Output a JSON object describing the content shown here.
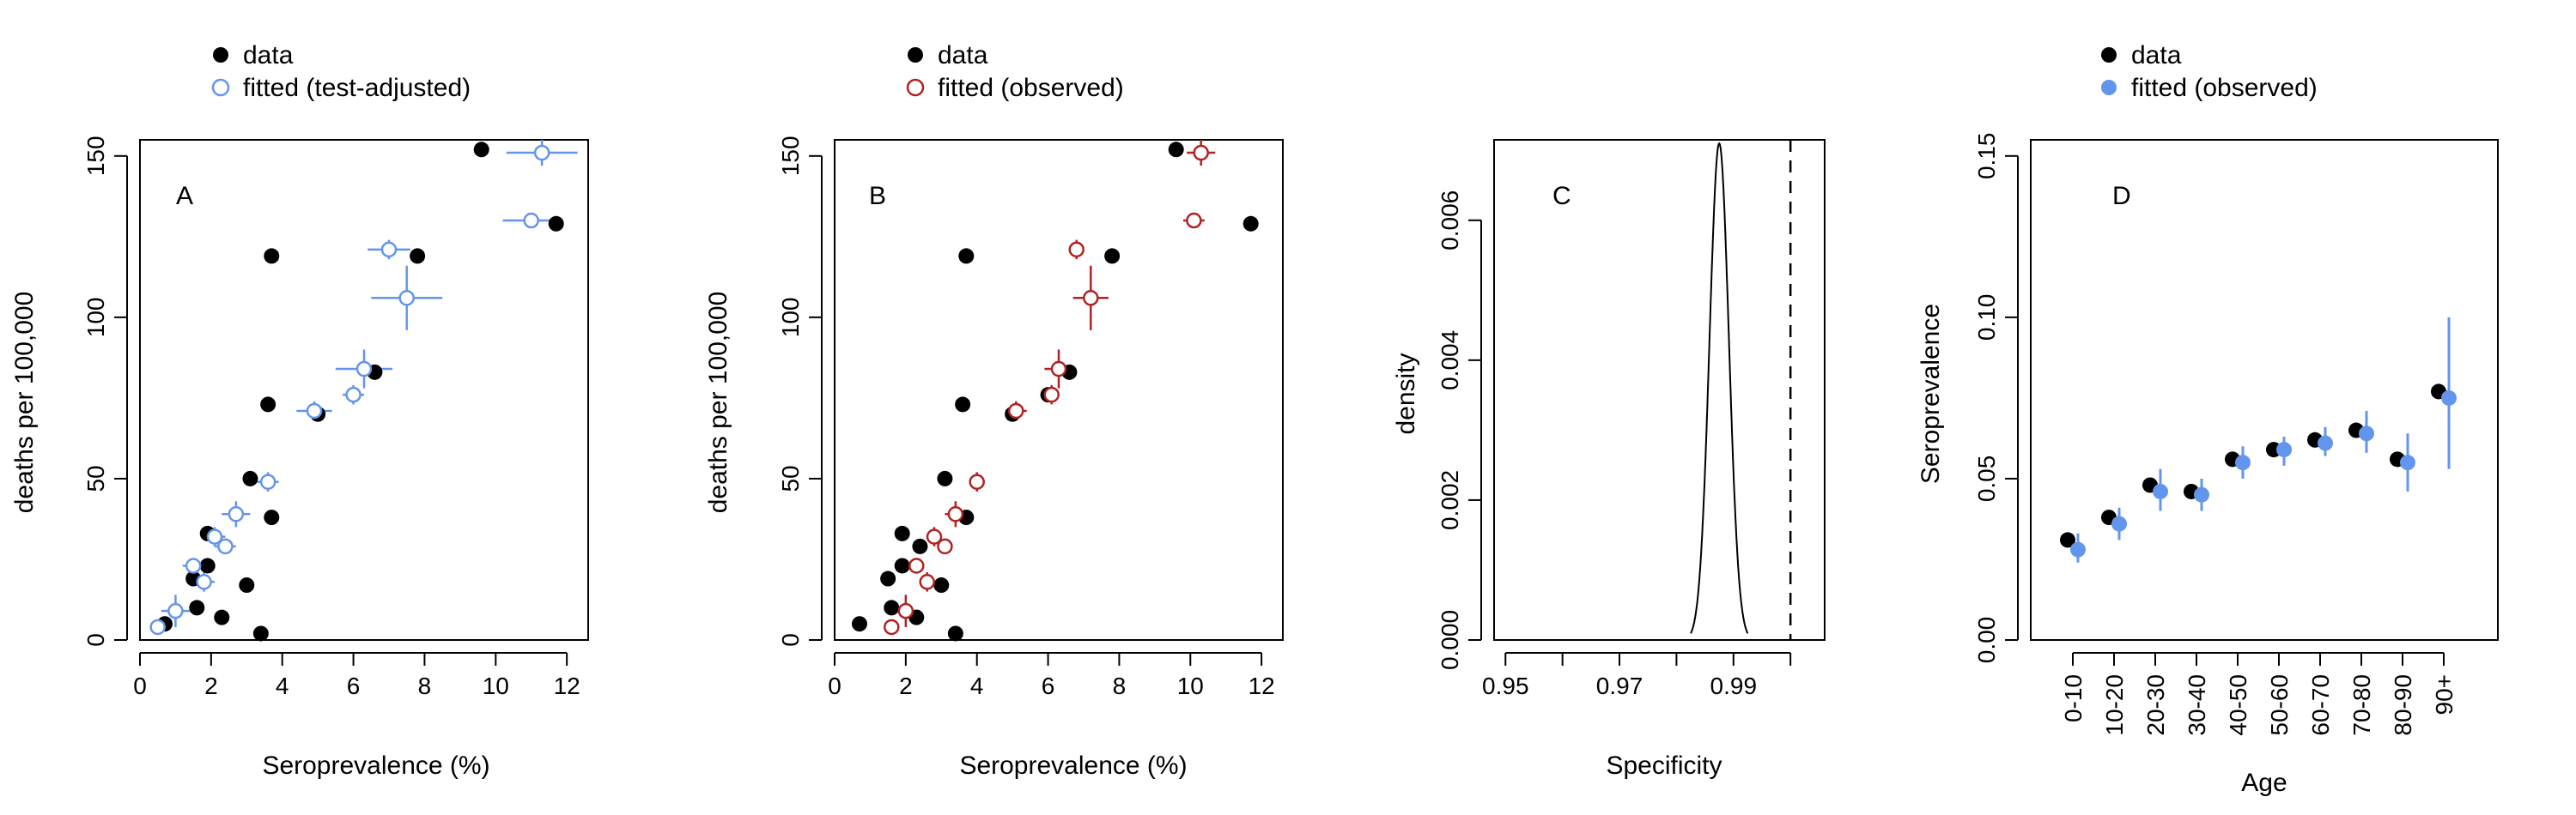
{
  "colors": {
    "data": "#000000",
    "blue": "#6495ED",
    "red": "#B22222"
  },
  "panels": [
    {
      "label": "A",
      "legend": {
        "data": "data",
        "fitted": "fitted (test-adjusted)"
      },
      "xlabel": "Seroprevalence (%)",
      "ylabel": "deaths per 100,000"
    },
    {
      "label": "B",
      "legend": {
        "data": "data",
        "fitted": "fitted (observed)"
      },
      "xlabel": "Seroprevalence (%)",
      "ylabel": "deaths per 100,000"
    },
    {
      "label": "C",
      "xlabel": "Specificity",
      "ylabel": "density"
    },
    {
      "label": "D",
      "legend": {
        "data": "data",
        "fitted": "fitted (observed)"
      },
      "xlabel": "Age",
      "ylabel": "Seroprevalence"
    }
  ],
  "chart_data": [
    {
      "type": "scatter",
      "panel": "A",
      "xlabel": "Seroprevalence (%)",
      "ylabel": "deaths per 100,000",
      "xlim": [
        0,
        12.6
      ],
      "ylim": [
        0,
        155
      ],
      "xticks": [
        0,
        2,
        4,
        6,
        8,
        10,
        12
      ],
      "yticks": [
        0,
        50,
        100,
        150
      ],
      "legend_position": "top-left, outside",
      "series": [
        {
          "name": "data",
          "marker": "filled-circle",
          "color": "#000000",
          "points": [
            {
              "x": 9.6,
              "y": 152
            },
            {
              "x": 11.7,
              "y": 129
            },
            {
              "x": 3.7,
              "y": 119
            },
            {
              "x": 7.8,
              "y": 119
            },
            {
              "x": 6.6,
              "y": 83
            },
            {
              "x": 6.0,
              "y": 76
            },
            {
              "x": 3.6,
              "y": 73
            },
            {
              "x": 5.0,
              "y": 70
            },
            {
              "x": 3.1,
              "y": 50
            },
            {
              "x": 3.7,
              "y": 38
            },
            {
              "x": 1.9,
              "y": 33
            },
            {
              "x": 2.4,
              "y": 29
            },
            {
              "x": 1.9,
              "y": 23
            },
            {
              "x": 1.5,
              "y": 19
            },
            {
              "x": 3.0,
              "y": 17
            },
            {
              "x": 1.6,
              "y": 10
            },
            {
              "x": 2.3,
              "y": 7
            },
            {
              "x": 0.7,
              "y": 5
            },
            {
              "x": 3.4,
              "y": 2
            }
          ]
        },
        {
          "name": "fitted (test-adjusted)",
          "marker": "open-circle",
          "color": "#6495ED",
          "points": [
            {
              "x": 11.3,
              "xerr": 1.0,
              "y": 151,
              "yerr": 4
            },
            {
              "x": 11.0,
              "xerr": 0.8,
              "y": 130,
              "yerr": 0
            },
            {
              "x": 7.0,
              "xerr": 0.6,
              "y": 121,
              "yerr": 3
            },
            {
              "x": 7.5,
              "xerr": 1.0,
              "y": 106,
              "yerr": 10
            },
            {
              "x": 6.3,
              "xerr": 0.8,
              "y": 84,
              "yerr": 6
            },
            {
              "x": 6.0,
              "xerr": 0.3,
              "y": 76,
              "yerr": 3
            },
            {
              "x": 4.9,
              "xerr": 0.5,
              "y": 71,
              "yerr": 3
            },
            {
              "x": 3.6,
              "xerr": 0.3,
              "y": 49,
              "yerr": 3
            },
            {
              "x": 2.7,
              "xerr": 0.4,
              "y": 39,
              "yerr": 4
            },
            {
              "x": 2.1,
              "xerr": 0.3,
              "y": 32,
              "yerr": 3
            },
            {
              "x": 2.4,
              "xerr": 0.3,
              "y": 29,
              "yerr": 2
            },
            {
              "x": 1.5,
              "xerr": 0.3,
              "y": 23,
              "yerr": 2
            },
            {
              "x": 1.8,
              "xerr": 0.3,
              "y": 18,
              "yerr": 3
            },
            {
              "x": 1.0,
              "xerr": 0.4,
              "y": 9,
              "yerr": 5
            },
            {
              "x": 0.5,
              "xerr": 0.2,
              "y": 4,
              "yerr": 1
            }
          ]
        }
      ]
    },
    {
      "type": "scatter",
      "panel": "B",
      "xlabel": "Seroprevalence (%)",
      "ylabel": "deaths per 100,000",
      "xlim": [
        0,
        12.6
      ],
      "ylim": [
        0,
        155
      ],
      "xticks": [
        0,
        2,
        4,
        6,
        8,
        10,
        12
      ],
      "yticks": [
        0,
        50,
        100,
        150
      ],
      "legend_position": "top-left, outside",
      "series": [
        {
          "name": "data",
          "marker": "filled-circle",
          "color": "#000000",
          "points": [
            {
              "x": 9.6,
              "y": 152
            },
            {
              "x": 11.7,
              "y": 129
            },
            {
              "x": 3.7,
              "y": 119
            },
            {
              "x": 7.8,
              "y": 119
            },
            {
              "x": 6.6,
              "y": 83
            },
            {
              "x": 6.0,
              "y": 76
            },
            {
              "x": 3.6,
              "y": 73
            },
            {
              "x": 5.0,
              "y": 70
            },
            {
              "x": 3.1,
              "y": 50
            },
            {
              "x": 3.7,
              "y": 38
            },
            {
              "x": 1.9,
              "y": 33
            },
            {
              "x": 2.4,
              "y": 29
            },
            {
              "x": 1.9,
              "y": 23
            },
            {
              "x": 1.5,
              "y": 19
            },
            {
              "x": 3.0,
              "y": 17
            },
            {
              "x": 1.6,
              "y": 10
            },
            {
              "x": 2.3,
              "y": 7
            },
            {
              "x": 0.7,
              "y": 5
            },
            {
              "x": 3.4,
              "y": 2
            }
          ]
        },
        {
          "name": "fitted (observed)",
          "marker": "open-circle",
          "color": "#B22222",
          "points": [
            {
              "x": 10.3,
              "xerr": 0.4,
              "y": 151,
              "yerr": 4
            },
            {
              "x": 10.1,
              "xerr": 0.3,
              "y": 130,
              "yerr": 1
            },
            {
              "x": 6.8,
              "xerr": 0.2,
              "y": 121,
              "yerr": 3
            },
            {
              "x": 7.2,
              "xerr": 0.5,
              "y": 106,
              "yerr": 10
            },
            {
              "x": 6.3,
              "xerr": 0.4,
              "y": 84,
              "yerr": 6
            },
            {
              "x": 6.1,
              "xerr": 0.2,
              "y": 76,
              "yerr": 3
            },
            {
              "x": 5.1,
              "xerr": 0.3,
              "y": 71,
              "yerr": 3
            },
            {
              "x": 4.0,
              "xerr": 0.2,
              "y": 49,
              "yerr": 3
            },
            {
              "x": 3.4,
              "xerr": 0.3,
              "y": 39,
              "yerr": 4
            },
            {
              "x": 2.8,
              "xerr": 0.2,
              "y": 32,
              "yerr": 3
            },
            {
              "x": 3.1,
              "xerr": 0.2,
              "y": 29,
              "yerr": 2
            },
            {
              "x": 2.3,
              "xerr": 0.2,
              "y": 23,
              "yerr": 2
            },
            {
              "x": 2.6,
              "xerr": 0.2,
              "y": 18,
              "yerr": 3
            },
            {
              "x": 2.0,
              "xerr": 0.4,
              "y": 9,
              "yerr": 5
            },
            {
              "x": 1.6,
              "xerr": 0.2,
              "y": 4,
              "yerr": 1
            }
          ]
        }
      ]
    },
    {
      "type": "line",
      "panel": "C",
      "xlabel": "Specificity",
      "ylabel": "density",
      "xlim": [
        0.948,
        1.006
      ],
      "ylim": [
        0,
        0.00715
      ],
      "xticks": [
        0.95,
        0.96,
        0.97,
        0.98,
        0.99,
        1.0
      ],
      "xtick_labels": [
        "0.95",
        "",
        "0.97",
        "",
        "0.99",
        ""
      ],
      "yticks": [
        0,
        0.002,
        0.004,
        0.006
      ],
      "ytick_labels": [
        "0.000",
        "0.002",
        "0.004",
        "0.006"
      ],
      "density": {
        "mean": 0.9875,
        "sd": 0.0017,
        "peak": 0.0071,
        "from": 0.9825,
        "to": 0.9925
      },
      "reference_line": {
        "x": 1.0,
        "style": "dashed"
      }
    },
    {
      "type": "scatter",
      "panel": "D",
      "xlabel": "Age",
      "ylabel": "Seroprevalence",
      "ylim": [
        0,
        0.155
      ],
      "yticks": [
        0,
        0.05,
        0.1,
        0.15
      ],
      "ytick_labels": [
        "0.00",
        "0.05",
        "0.10",
        "0.15"
      ],
      "categories": [
        "0-10",
        "10-20",
        "20-30",
        "30-40",
        "40-50",
        "50-60",
        "60-70",
        "70-80",
        "80-90",
        "90+"
      ],
      "legend_position": "top-left, outside",
      "series": [
        {
          "name": "data",
          "marker": "filled-circle",
          "color": "#000000",
          "values": [
            0.031,
            0.038,
            0.048,
            0.046,
            0.056,
            0.059,
            0.062,
            0.065,
            0.056,
            0.077
          ]
        },
        {
          "name": "fitted (observed)",
          "marker": "filled-circle",
          "color": "#6495ED",
          "values": [
            0.028,
            0.036,
            0.046,
            0.045,
            0.055,
            0.059,
            0.061,
            0.064,
            0.055,
            0.075
          ],
          "lower": [
            0.024,
            0.031,
            0.04,
            0.04,
            0.05,
            0.054,
            0.057,
            0.058,
            0.046,
            0.053
          ],
          "upper": [
            0.033,
            0.041,
            0.053,
            0.05,
            0.06,
            0.063,
            0.066,
            0.071,
            0.064,
            0.1
          ]
        }
      ]
    }
  ]
}
